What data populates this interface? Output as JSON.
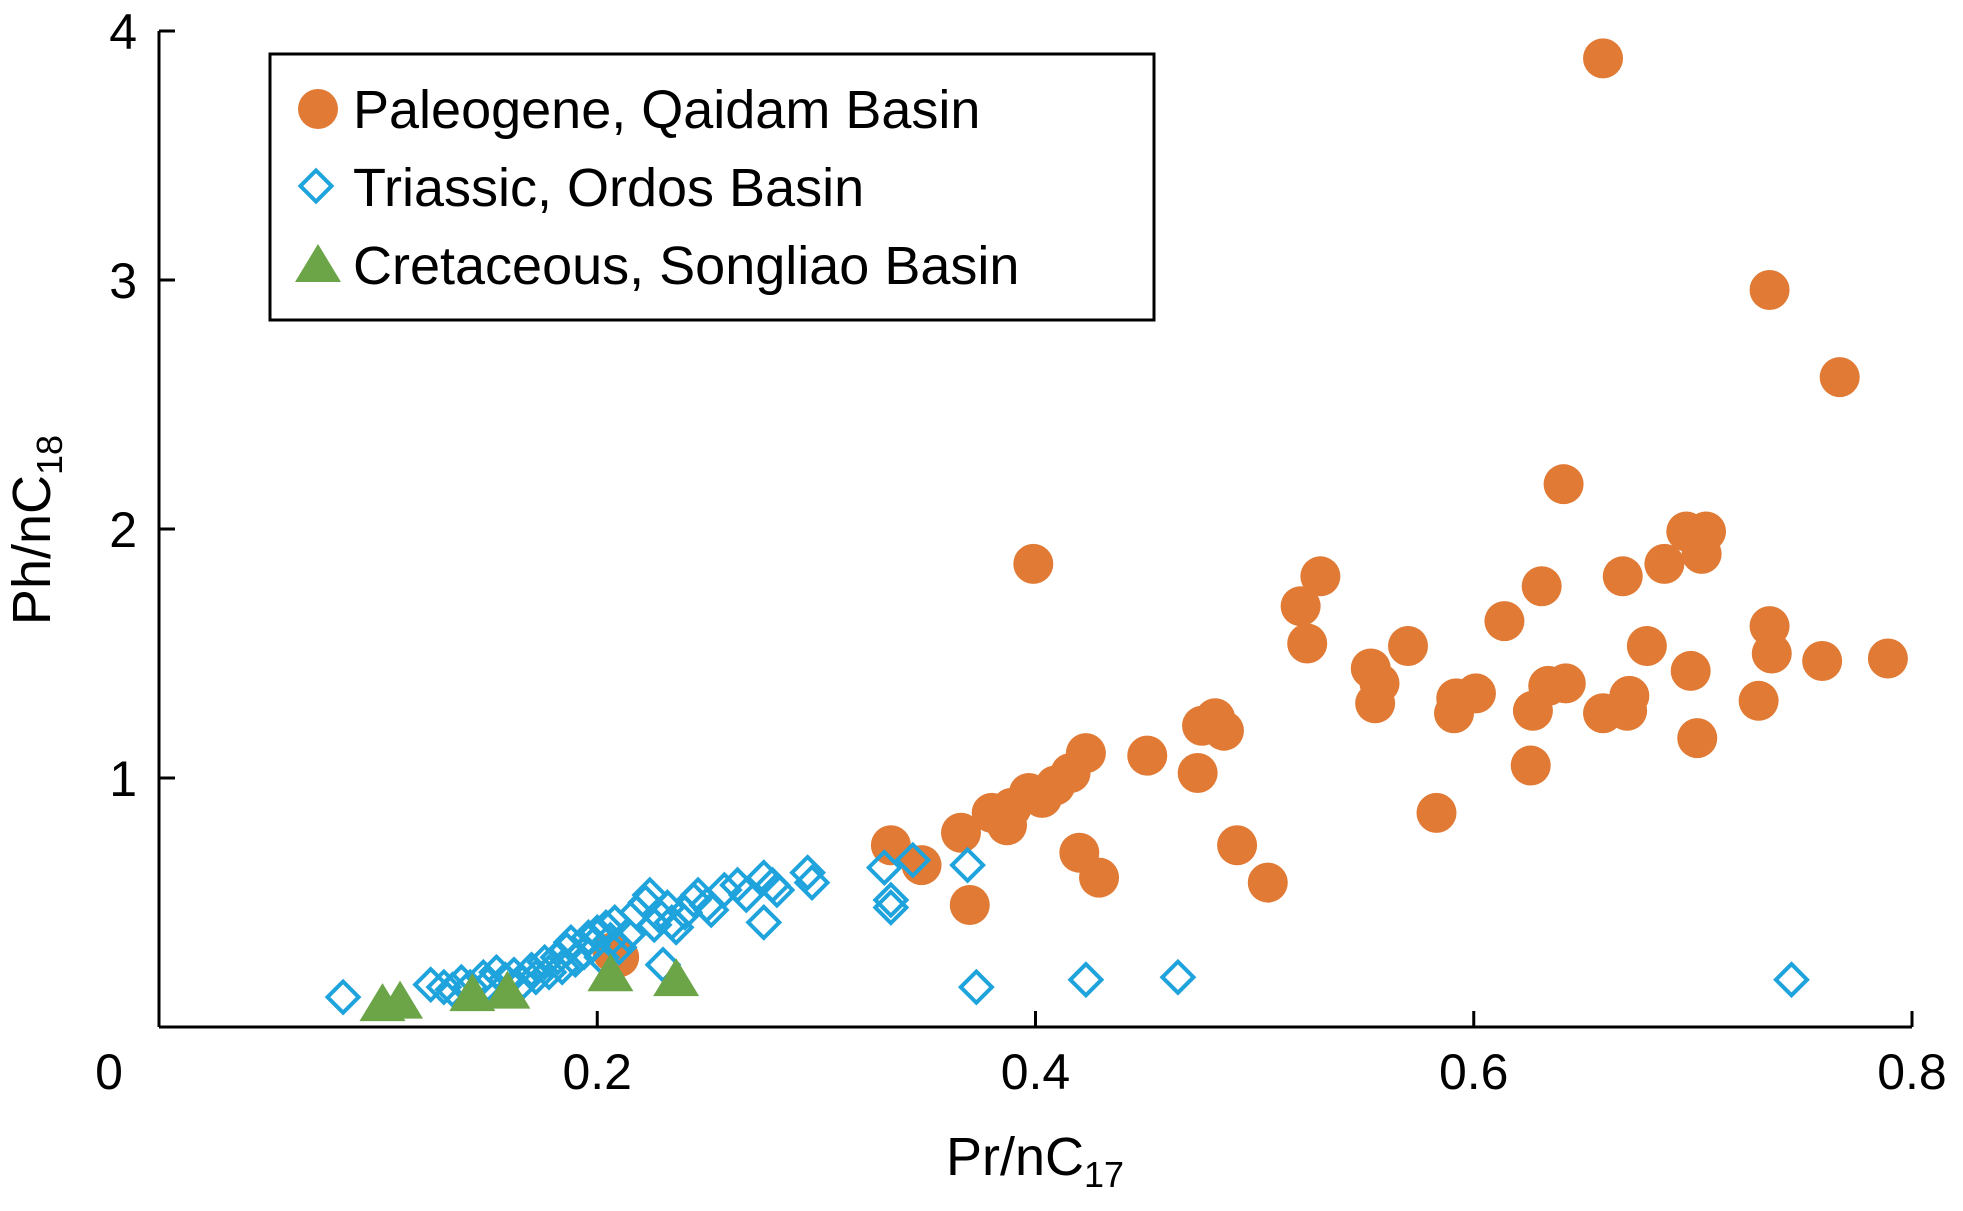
{
  "chart_data": {
    "type": "scatter",
    "xlabel": {
      "main": "Pr/nC",
      "sub": "17"
    },
    "ylabel": {
      "main": "Ph/nC",
      "sub": "18"
    },
    "xlim": [
      0,
      0.8
    ],
    "ylim": [
      0,
      4
    ],
    "xticks": [
      0,
      0.2,
      0.4,
      0.6,
      0.8
    ],
    "xtick_labels": [
      "0",
      "0.2",
      "0.4",
      "0.6",
      "0.8"
    ],
    "yticks": [
      1,
      2,
      3,
      4
    ],
    "ytick_labels": [
      "1",
      "2",
      "3",
      "4"
    ],
    "grid": false,
    "legend_placement": "top-left",
    "series": [
      {
        "name": "Paleogene, Qaidam Basin",
        "marker": "circle",
        "color": "#E07A34",
        "points": [
          [
            0.659,
            3.89
          ],
          [
            0.735,
            2.96
          ],
          [
            0.767,
            2.61
          ],
          [
            0.641,
            2.18
          ],
          [
            0.399,
            1.86
          ],
          [
            0.697,
            1.99
          ],
          [
            0.706,
            1.99
          ],
          [
            0.687,
            1.86
          ],
          [
            0.704,
            1.9
          ],
          [
            0.668,
            1.81
          ],
          [
            0.53,
            1.81
          ],
          [
            0.521,
            1.69
          ],
          [
            0.524,
            1.54
          ],
          [
            0.631,
            1.77
          ],
          [
            0.614,
            1.63
          ],
          [
            0.679,
            1.53
          ],
          [
            0.735,
            1.61
          ],
          [
            0.736,
            1.5
          ],
          [
            0.759,
            1.47
          ],
          [
            0.789,
            1.48
          ],
          [
            0.699,
            1.43
          ],
          [
            0.553,
            1.44
          ],
          [
            0.557,
            1.38
          ],
          [
            0.555,
            1.3
          ],
          [
            0.57,
            1.53
          ],
          [
            0.592,
            1.32
          ],
          [
            0.601,
            1.34
          ],
          [
            0.591,
            1.26
          ],
          [
            0.634,
            1.37
          ],
          [
            0.642,
            1.38
          ],
          [
            0.627,
            1.27
          ],
          [
            0.659,
            1.26
          ],
          [
            0.67,
            1.27
          ],
          [
            0.671,
            1.33
          ],
          [
            0.73,
            1.31
          ],
          [
            0.702,
            1.16
          ],
          [
            0.626,
            1.05
          ],
          [
            0.583,
            0.86
          ],
          [
            0.482,
            1.24
          ],
          [
            0.476,
            1.21
          ],
          [
            0.486,
            1.19
          ],
          [
            0.451,
            1.09
          ],
          [
            0.474,
            1.02
          ],
          [
            0.423,
            1.1
          ],
          [
            0.416,
            1.02
          ],
          [
            0.409,
            0.97
          ],
          [
            0.397,
            0.94
          ],
          [
            0.403,
            0.92
          ],
          [
            0.389,
            0.88
          ],
          [
            0.38,
            0.86
          ],
          [
            0.387,
            0.81
          ],
          [
            0.366,
            0.78
          ],
          [
            0.42,
            0.7
          ],
          [
            0.429,
            0.6
          ],
          [
            0.492,
            0.73
          ],
          [
            0.506,
            0.58
          ],
          [
            0.334,
            0.73
          ],
          [
            0.348,
            0.65
          ],
          [
            0.37,
            0.49
          ],
          [
            0.207,
            0.3
          ],
          [
            0.21,
            0.28
          ]
        ]
      },
      {
        "name": "Triassic, Ordos Basin",
        "marker": "diamond-open",
        "color": "#1FA3DC",
        "points": [
          [
            0.084,
            0.12
          ],
          [
            0.373,
            0.16
          ],
          [
            0.423,
            0.19
          ],
          [
            0.465,
            0.2
          ],
          [
            0.745,
            0.19
          ],
          [
            0.369,
            0.65
          ],
          [
            0.344,
            0.67
          ],
          [
            0.331,
            0.64
          ],
          [
            0.334,
            0.51
          ],
          [
            0.334,
            0.48
          ],
          [
            0.276,
            0.42
          ],
          [
            0.23,
            0.25
          ],
          [
            0.124,
            0.17
          ],
          [
            0.13,
            0.16
          ],
          [
            0.134,
            0.15
          ],
          [
            0.138,
            0.18
          ],
          [
            0.142,
            0.16
          ],
          [
            0.148,
            0.2
          ],
          [
            0.15,
            0.17
          ],
          [
            0.154,
            0.22
          ],
          [
            0.158,
            0.19
          ],
          [
            0.162,
            0.21
          ],
          [
            0.166,
            0.18
          ],
          [
            0.17,
            0.23
          ],
          [
            0.172,
            0.2
          ],
          [
            0.176,
            0.26
          ],
          [
            0.178,
            0.22
          ],
          [
            0.182,
            0.28
          ],
          [
            0.184,
            0.24
          ],
          [
            0.186,
            0.31
          ],
          [
            0.188,
            0.34
          ],
          [
            0.19,
            0.27
          ],
          [
            0.194,
            0.3
          ],
          [
            0.196,
            0.36
          ],
          [
            0.198,
            0.33
          ],
          [
            0.2,
            0.38
          ],
          [
            0.202,
            0.28
          ],
          [
            0.204,
            0.4
          ],
          [
            0.206,
            0.35
          ],
          [
            0.208,
            0.42
          ],
          [
            0.21,
            0.32
          ],
          [
            0.214,
            0.37
          ],
          [
            0.218,
            0.46
          ],
          [
            0.222,
            0.5
          ],
          [
            0.224,
            0.53
          ],
          [
            0.226,
            0.41
          ],
          [
            0.228,
            0.45
          ],
          [
            0.232,
            0.48
          ],
          [
            0.234,
            0.42
          ],
          [
            0.236,
            0.4
          ],
          [
            0.24,
            0.46
          ],
          [
            0.244,
            0.51
          ],
          [
            0.246,
            0.53
          ],
          [
            0.25,
            0.49
          ],
          [
            0.252,
            0.47
          ],
          [
            0.258,
            0.55
          ],
          [
            0.264,
            0.57
          ],
          [
            0.268,
            0.53
          ],
          [
            0.276,
            0.6
          ],
          [
            0.28,
            0.57
          ],
          [
            0.282,
            0.55
          ],
          [
            0.296,
            0.62
          ],
          [
            0.298,
            0.58
          ]
        ]
      },
      {
        "name": "Cretaceous, Songliao Basin",
        "marker": "triangle",
        "color": "#6BA547",
        "points": [
          [
            0.102,
            0.08
          ],
          [
            0.11,
            0.09
          ],
          [
            0.143,
            0.12
          ],
          [
            0.159,
            0.13
          ],
          [
            0.206,
            0.2
          ],
          [
            0.236,
            0.18
          ]
        ]
      }
    ]
  }
}
